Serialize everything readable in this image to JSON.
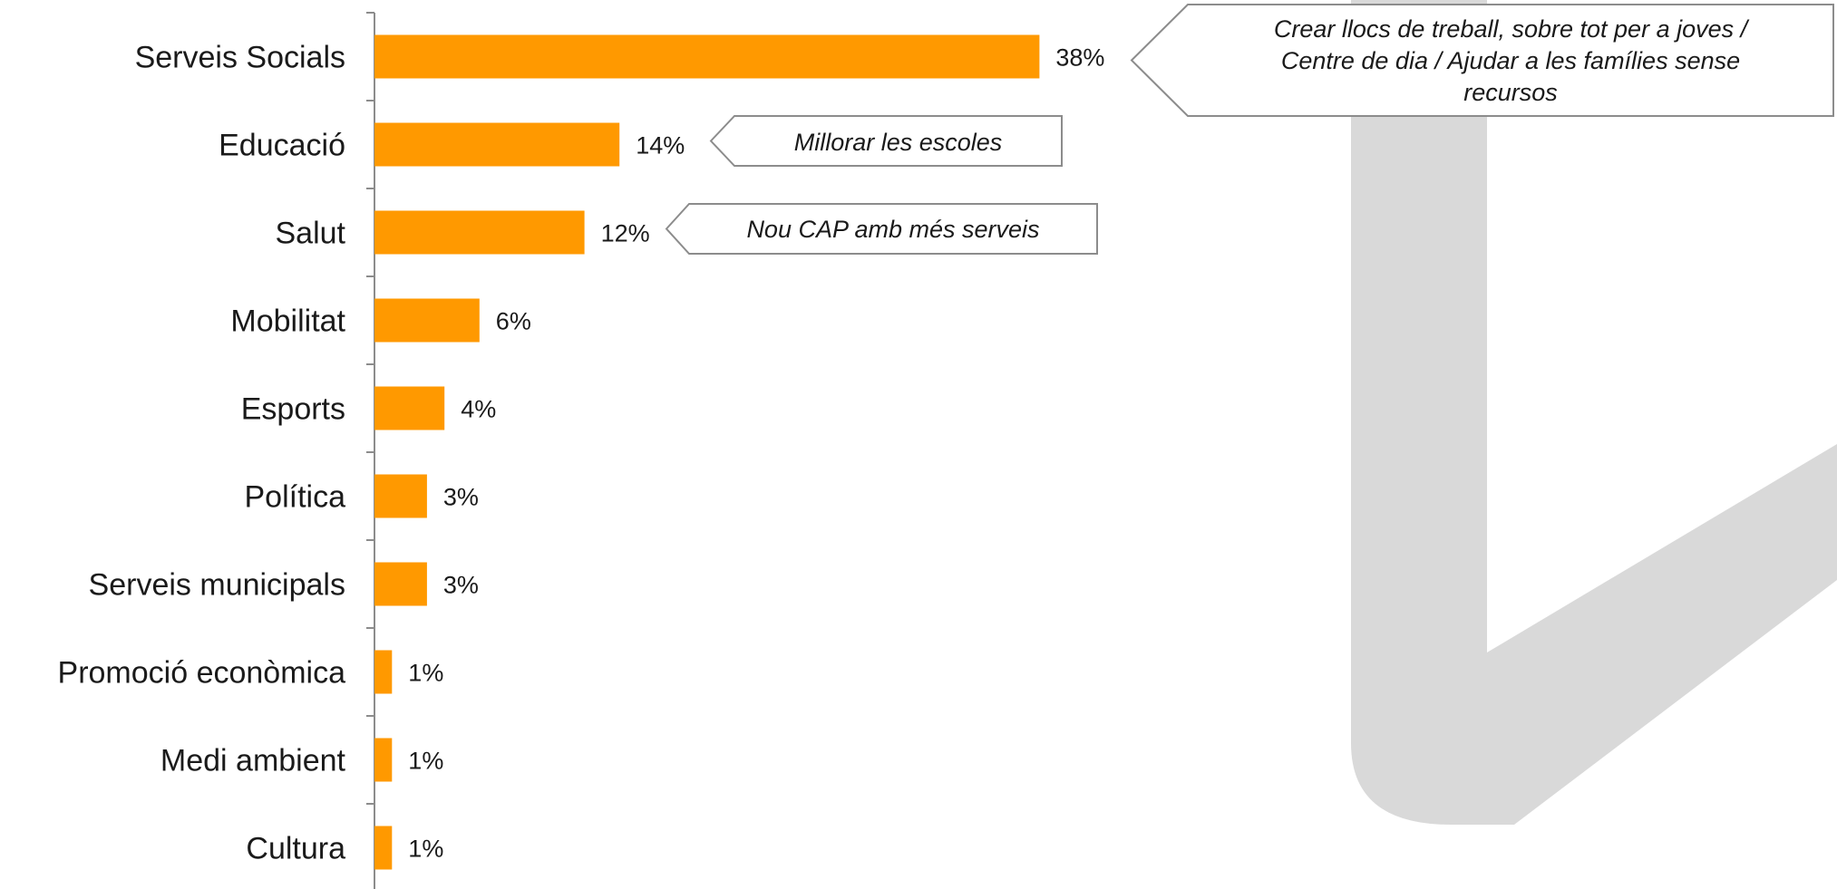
{
  "chart_data": {
    "type": "bar",
    "orientation": "horizontal",
    "categories": [
      "Serveis Socials",
      "Educació",
      "Salut",
      "Mobilitat",
      "Esports",
      "Política",
      "Serveis municipals",
      "Promoció econòmica",
      "Medi ambient",
      "Cultura"
    ],
    "values": [
      38,
      14,
      12,
      6,
      4,
      3,
      3,
      1,
      1,
      1
    ],
    "value_labels": [
      "38%",
      "14%",
      "12%",
      "6%",
      "4%",
      "3%",
      "3%",
      "1%",
      "1%",
      "1%"
    ],
    "unit": "%",
    "bar_color": "#FF9900",
    "title": "",
    "xlabel": "",
    "ylabel": "",
    "grid": false,
    "legend": "none"
  },
  "callouts": [
    {
      "category": "Serveis Socials",
      "lines": [
        "Crear llocs de treball, sobre tot per a joves  /",
        "Centre de dia / Ajudar a les famílies sense",
        "recursos"
      ]
    },
    {
      "category": "Educació",
      "lines": [
        "Millorar les escoles"
      ]
    },
    {
      "category": "Salut",
      "lines": [
        "Nou CAP amb més serveis"
      ]
    }
  ],
  "colors": {
    "watermark": "#d9d9d9",
    "axis": "#8c8c8c",
    "callout_border": "#8c8c8c"
  }
}
